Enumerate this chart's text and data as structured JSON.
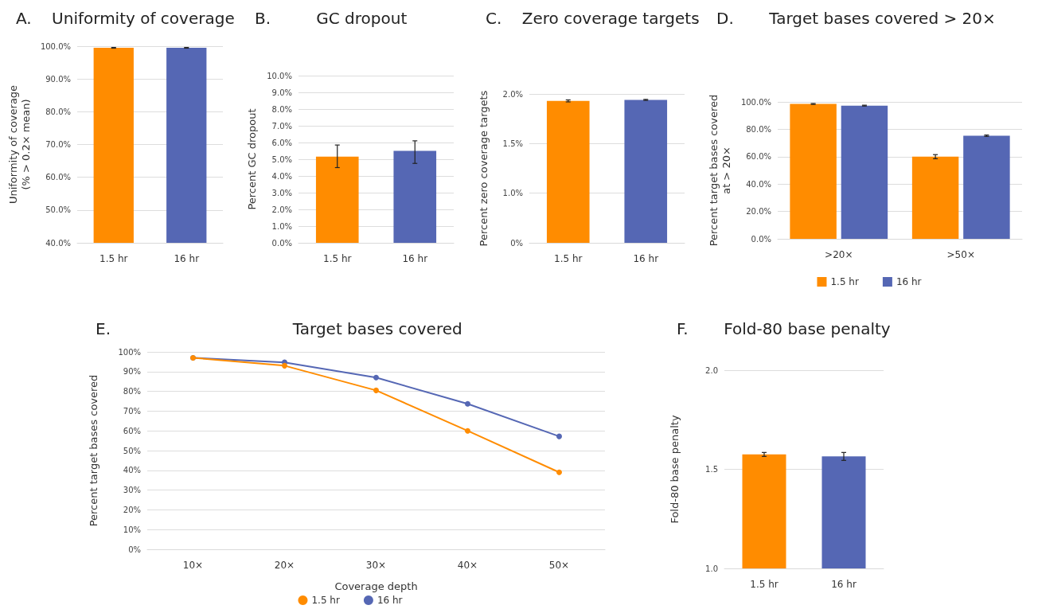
{
  "chart_data": [
    {
      "type": "bar",
      "title": "A.    Uniformity of coverage",
      "ylabel": "Uniformity of coverage\n(% > 0.2× mean)",
      "categories": [
        "1.5 hr",
        "16 hr"
      ],
      "values": [
        99.5,
        99.5
      ],
      "errors": [
        0.1,
        0.1
      ],
      "colors": [
        "#ff8c00",
        "#5567b4"
      ],
      "ylim": [
        40,
        100
      ],
      "yticks": [
        {
          "value": 40,
          "label": "40.0%"
        },
        {
          "value": 50,
          "label": "50.0%"
        },
        {
          "value": 60,
          "label": "60.0%"
        },
        {
          "value": 70,
          "label": "70.0%"
        },
        {
          "value": 80,
          "label": "80.0%"
        },
        {
          "value": 90,
          "label": "90.0%"
        },
        {
          "value": 100,
          "label": "100.0%"
        }
      ],
      "grid": "y",
      "legend": false
    },
    {
      "type": "bar",
      "title": "B.         GC dropout",
      "ylabel": "Percent GC dropout",
      "categories": [
        "1.5 hr",
        "16 hr"
      ],
      "values": [
        5.15,
        5.5
      ],
      "errors": [
        [
          4.5,
          5.85
        ],
        [
          4.75,
          6.1
        ]
      ],
      "colors": [
        "#ff8c00",
        "#5567b4"
      ],
      "ylim": [
        0,
        10
      ],
      "yticks": [
        {
          "value": 0,
          "label": "0.0%"
        },
        {
          "value": 1,
          "label": "1.0%"
        },
        {
          "value": 2,
          "label": "2.0%"
        },
        {
          "value": 3,
          "label": "3.0%"
        },
        {
          "value": 4,
          "label": "4.0%"
        },
        {
          "value": 5,
          "label": "5.0%"
        },
        {
          "value": 6,
          "label": "6.0%"
        },
        {
          "value": 7,
          "label": "7.0%"
        },
        {
          "value": 8,
          "label": "8.0%"
        },
        {
          "value": 9,
          "label": "9.0%"
        },
        {
          "value": 10,
          "label": "10.0%"
        }
      ],
      "grid": "y",
      "legend": false
    },
    {
      "type": "bar",
      "title": "C.    Zero coverage targets",
      "ylabel": "Percent zero coverage targets",
      "categories": [
        "1.5 hr",
        "16 hr"
      ],
      "values": [
        1.93,
        1.94
      ],
      "errors": [
        0.01,
        0.005
      ],
      "colors": [
        "#ff8c00",
        "#5567b4"
      ],
      "ylim": [
        0.5,
        2
      ],
      "yticks": [
        {
          "value": 0.5,
          "label": "0%"
        },
        {
          "value": 1,
          "label": "1.0%"
        },
        {
          "value": 1.5,
          "label": "1.5%"
        },
        {
          "value": 2,
          "label": "2.0%"
        }
      ],
      "grid": "y",
      "legend": false
    },
    {
      "type": "bar",
      "title": "D.       Target bases covered > 20×",
      "ylabel": "Percent target bases covered\nat > 20×",
      "categories": [
        ">20×",
        ">50×"
      ],
      "series": [
        {
          "name": "1.5 hr",
          "color": "#ff8c00",
          "values": [
            98.5,
            60
          ],
          "errors": [
            0.3,
            1.5
          ]
        },
        {
          "name": "16 hr",
          "color": "#5567b4",
          "values": [
            97.3,
            75.3
          ],
          "errors": [
            0.3,
            0.5
          ]
        }
      ],
      "ylim": [
        0,
        100
      ],
      "yticks": [
        {
          "value": 0,
          "label": "0.0%"
        },
        {
          "value": 20,
          "label": "20.0%"
        },
        {
          "value": 40,
          "label": "40.0%"
        },
        {
          "value": 60,
          "label": "60.0%"
        },
        {
          "value": 80,
          "label": "80.0%"
        },
        {
          "value": 100,
          "label": "100.0%"
        }
      ],
      "grid": "y",
      "legend": "bottom"
    },
    {
      "type": "line",
      "title": "E.                                    Target bases covered",
      "xlabel": "Coverage depth",
      "ylabel": "Percent target bases covered",
      "categories": [
        "10×",
        "20×",
        "30×",
        "40×",
        "50×"
      ],
      "series": [
        {
          "name": "1.5 hr",
          "color": "#ff8c00",
          "values": [
            97,
            93,
            80.5,
            60,
            39
          ]
        },
        {
          "name": "16 hr",
          "color": "#5567b4",
          "values": [
            97,
            94.7,
            87,
            73.7,
            57.2
          ]
        }
      ],
      "ylim": [
        0,
        100
      ],
      "yticks": [
        {
          "value": 0,
          "label": "0%"
        },
        {
          "value": 10,
          "label": "10%"
        },
        {
          "value": 20,
          "label": "20%"
        },
        {
          "value": 30,
          "label": "30%"
        },
        {
          "value": 40,
          "label": "40%"
        },
        {
          "value": 50,
          "label": "50%"
        },
        {
          "value": 60,
          "label": "60%"
        },
        {
          "value": 70,
          "label": "70%"
        },
        {
          "value": 80,
          "label": "80%"
        },
        {
          "value": 90,
          "label": "90%"
        },
        {
          "value": 100,
          "label": "100%"
        }
      ],
      "grid": "y",
      "legend": "bottom",
      "marker": "circle",
      "line_style": "solid"
    },
    {
      "type": "bar",
      "title": "F.       Fold-80 base penalty",
      "ylabel": "Fold-80 base penalty",
      "categories": [
        "1.5 hr",
        "16 hr"
      ],
      "values": [
        1.575,
        1.565
      ],
      "errors": [
        0.01,
        0.02
      ],
      "colors": [
        "#ff8c00",
        "#5567b4"
      ],
      "ylim": [
        1,
        2
      ],
      "yticks": [
        {
          "value": 1,
          "label": "1.0"
        },
        {
          "value": 1.5,
          "label": "1.5"
        },
        {
          "value": 2,
          "label": "2.0"
        }
      ],
      "grid": "y",
      "legend": false
    }
  ]
}
